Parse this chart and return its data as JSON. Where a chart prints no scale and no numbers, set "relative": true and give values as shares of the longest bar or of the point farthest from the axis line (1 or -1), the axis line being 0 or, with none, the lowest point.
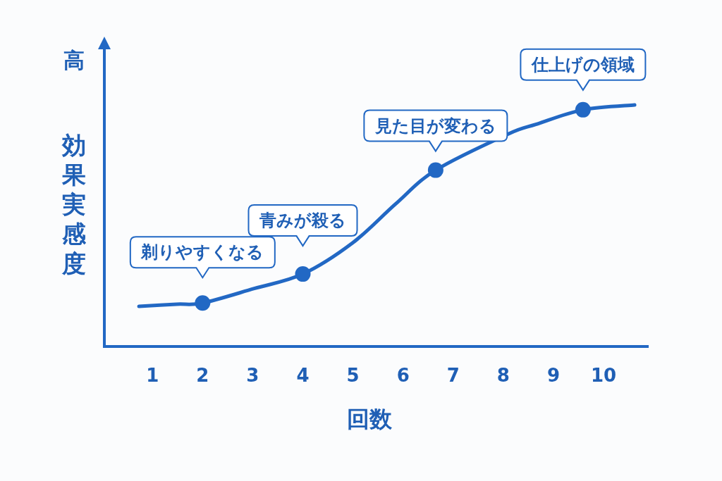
{
  "chart_data": {
    "type": "line",
    "xlabel": "回数",
    "ylabel": "効果実感度",
    "relative": true,
    "grid": false,
    "xlim": [
      0.04,
      10.9
    ],
    "xticks": [
      1,
      2,
      3,
      4,
      5,
      6,
      7,
      8,
      9,
      10
    ],
    "series": [
      {
        "type": "line",
        "color": "#2268c4",
        "marker": "none",
        "x": [
          0.73,
          1.48,
          2,
          3.03,
          4,
          5,
          5.85,
          6.65,
          8.1,
          8.66,
          9.59,
          10.62
        ],
        "values": [
          0.166,
          0.175,
          0.18,
          0.24,
          0.3,
          0.43,
          0.59,
          0.73,
          0.88,
          0.92,
          0.98,
          1
        ]
      },
      {
        "type": "scatter",
        "color": "#2268c4",
        "marker": "circle",
        "x": [
          2,
          4,
          6.65,
          9.59
        ],
        "values": [
          0.18,
          0.3,
          0.73,
          0.98
        ]
      }
    ],
    "annotations": [
      "高",
      {
        "text": "剃りやすくなる",
        "x": 2,
        "y": 0.18
      },
      {
        "text": "青みが殺る",
        "x": 4,
        "y": 0.3
      },
      {
        "text": "見た目が変わる",
        "x": 6.65,
        "y": 0.73
      },
      {
        "text": "仕上げの領域",
        "x": 9.59,
        "y": 0.98
      }
    ]
  }
}
